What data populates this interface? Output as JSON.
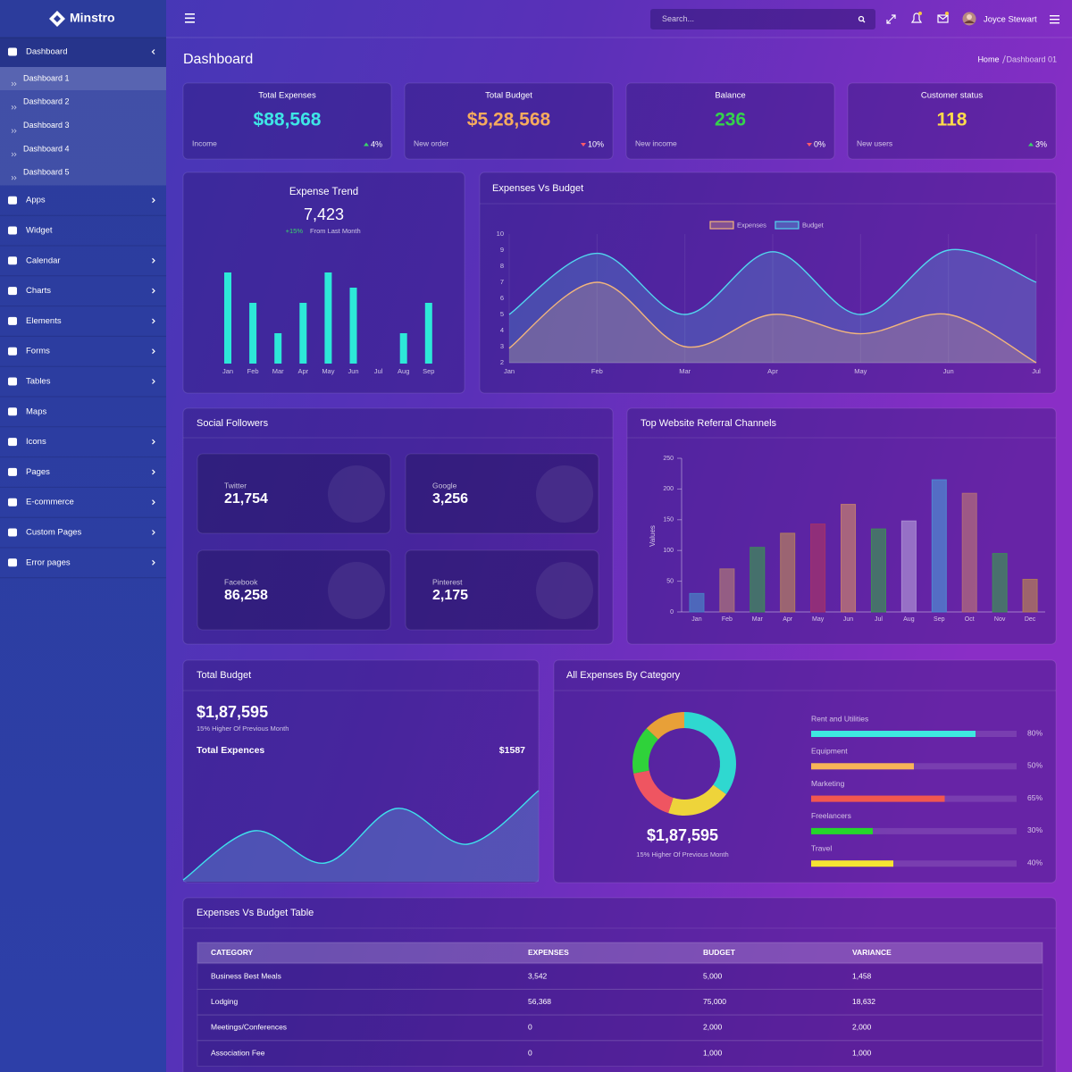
{
  "sidebar": {
    "brand": "Minstro",
    "menu": [
      {
        "label": "Dashboard",
        "submenu": true,
        "open": true,
        "children": [
          "Dashboard 1",
          "Dashboard 2",
          "Dashboard 3",
          "Dashboard 4",
          "Dashboard 5"
        ]
      },
      {
        "label": "Apps",
        "submenu": true
      },
      {
        "label": "Widget",
        "submenu": false
      },
      {
        "label": "Calendar",
        "submenu": true
      },
      {
        "label": "Charts",
        "submenu": true
      },
      {
        "label": "Elements",
        "submenu": true
      },
      {
        "label": "Forms",
        "submenu": true
      },
      {
        "label": "Tables",
        "submenu": true
      },
      {
        "label": "Maps",
        "submenu": false
      },
      {
        "label": "Icons",
        "submenu": true
      },
      {
        "label": "Pages",
        "submenu": true
      },
      {
        "label": "E-commerce",
        "submenu": true
      },
      {
        "label": "Custom Pages",
        "submenu": true
      },
      {
        "label": "Error pages",
        "submenu": true
      }
    ]
  },
  "topbar": {
    "search_placeholder": "Search...",
    "user": "Joyce Stewart"
  },
  "page": {
    "title": "Dashboard",
    "breadcrumb": [
      "Home",
      "Dashboard 01"
    ]
  },
  "stats": [
    {
      "title": "Total Expenses",
      "value": "$88,568",
      "color": "#3ee6e6",
      "label": "Income",
      "change": "4%",
      "trend": "up"
    },
    {
      "title": "Total Budget",
      "value": "$5,28,568",
      "color": "#f6ab5e",
      "label": "New order",
      "change": "10%",
      "trend": "down"
    },
    {
      "title": "Balance",
      "value": "236",
      "color": "#35d24b",
      "label": "New income",
      "change": "0%",
      "trend": "down"
    },
    {
      "title": "Customer status",
      "value": "118",
      "color": "#ffdc4a",
      "label": "New users",
      "change": "3%",
      "trend": "up"
    }
  ],
  "expense_trend": {
    "type": "bar",
    "title": "Expense Trend",
    "total": "7,423",
    "change": "+15%",
    "note": "From Last Month",
    "categories": [
      "Jan",
      "Feb",
      "Mar",
      "Apr",
      "May",
      "Jun",
      "Jul",
      "Aug",
      "Sep"
    ],
    "values": [
      6,
      4,
      2,
      4,
      6,
      5,
      0,
      2,
      4
    ],
    "color": "#2de8d8"
  },
  "expenses_vs_budget": {
    "type": "line",
    "title": "Expenses Vs Budget",
    "categories": [
      "Jan",
      "Feb",
      "Mar",
      "Apr",
      "May",
      "Jun",
      "Jul"
    ],
    "ylim": [
      2,
      10
    ],
    "yticks": [
      2,
      3,
      4,
      5,
      6,
      7,
      8,
      9,
      10
    ],
    "series": [
      {
        "name": "Expenses",
        "color": "#f2b57c",
        "values": [
          2.9,
          7,
          3,
          5,
          3.8,
          5,
          2
        ]
      },
      {
        "name": "Budget",
        "color": "#52d6ee",
        "values": [
          5,
          8.8,
          5,
          8.9,
          5,
          9,
          7
        ]
      }
    ]
  },
  "social_followers": {
    "title": "Social Followers",
    "accounts": [
      {
        "name": "Twitter",
        "value": "21,754"
      },
      {
        "name": "Google",
        "value": "3,256"
      },
      {
        "name": "Facebook",
        "value": "86,258"
      },
      {
        "name": "Pinterest",
        "value": "2,175"
      }
    ]
  },
  "referrals": {
    "type": "bar",
    "title": "Top Website Referral Channels",
    "y_label": "Values",
    "categories": [
      "Jan",
      "Feb",
      "Mar",
      "Apr",
      "May",
      "Jun",
      "Jul",
      "Aug",
      "Sep",
      "Oct",
      "Nov",
      "Dec"
    ],
    "values": [
      30,
      70,
      105,
      128,
      143,
      175,
      135,
      148,
      215,
      193,
      95,
      53
    ],
    "colors": [
      "#4a7dc4",
      "#a8707a",
      "#3f8a5a",
      "#b07a62",
      "#a2326c",
      "#c07a72",
      "#3f8a5a",
      "#a88ad2",
      "#4f86d0",
      "#b06a7c",
      "#3f8a5a",
      "#b07a5a"
    ],
    "ylim": [
      0,
      250
    ],
    "yticks": [
      0,
      50,
      100,
      150,
      200,
      250
    ]
  },
  "total_budget": {
    "type": "area",
    "title": "Total Budget",
    "value": "$1,87,595",
    "note": "15% Higher Of Previous Month",
    "subtitle": "Total Expences",
    "subtitle_value": "$1587",
    "values": [
      0,
      5.5,
      1.9,
      8,
      4,
      10
    ],
    "color": "#3fe0ec"
  },
  "expenses_by_category": {
    "type": "pie",
    "title": "All Expenses By Category",
    "donut": {
      "values": [
        35,
        20,
        17,
        15,
        13
      ],
      "colors": [
        "#2fd8d0",
        "#eed43a",
        "#ef5561",
        "#2fd23a",
        "#e8a038"
      ]
    },
    "total": "$1,87,595",
    "note": "15% Higher Of Previous Month",
    "categories": [
      "Rent and Utilities",
      "Equipment",
      "Marketing",
      "Freelancers",
      "Travel"
    ],
    "values": [
      80,
      50,
      65,
      30,
      40
    ],
    "value_labels": [
      "80%",
      "50%",
      "65%",
      "30%",
      "40%"
    ],
    "colors": [
      "#3ee8e0",
      "#f8b457",
      "#f2574f",
      "#25d62a",
      "#f5e332"
    ],
    "xlim": [
      0,
      100
    ]
  },
  "table": {
    "title": "Expenses Vs Budget Table",
    "columns": [
      "CATEGORY",
      "EXPENSES",
      "BUDGET",
      "VARIANCE"
    ],
    "rows": [
      [
        "Business Best Meals",
        "3,542",
        "5,000",
        "1,458"
      ],
      [
        "Lodging",
        "56,368",
        "75,000",
        "18,632"
      ],
      [
        "Meetings/Conferences",
        "0",
        "2,000",
        "2,000"
      ],
      [
        "Association Fee",
        "0",
        "1,000",
        "1,000"
      ]
    ]
  }
}
